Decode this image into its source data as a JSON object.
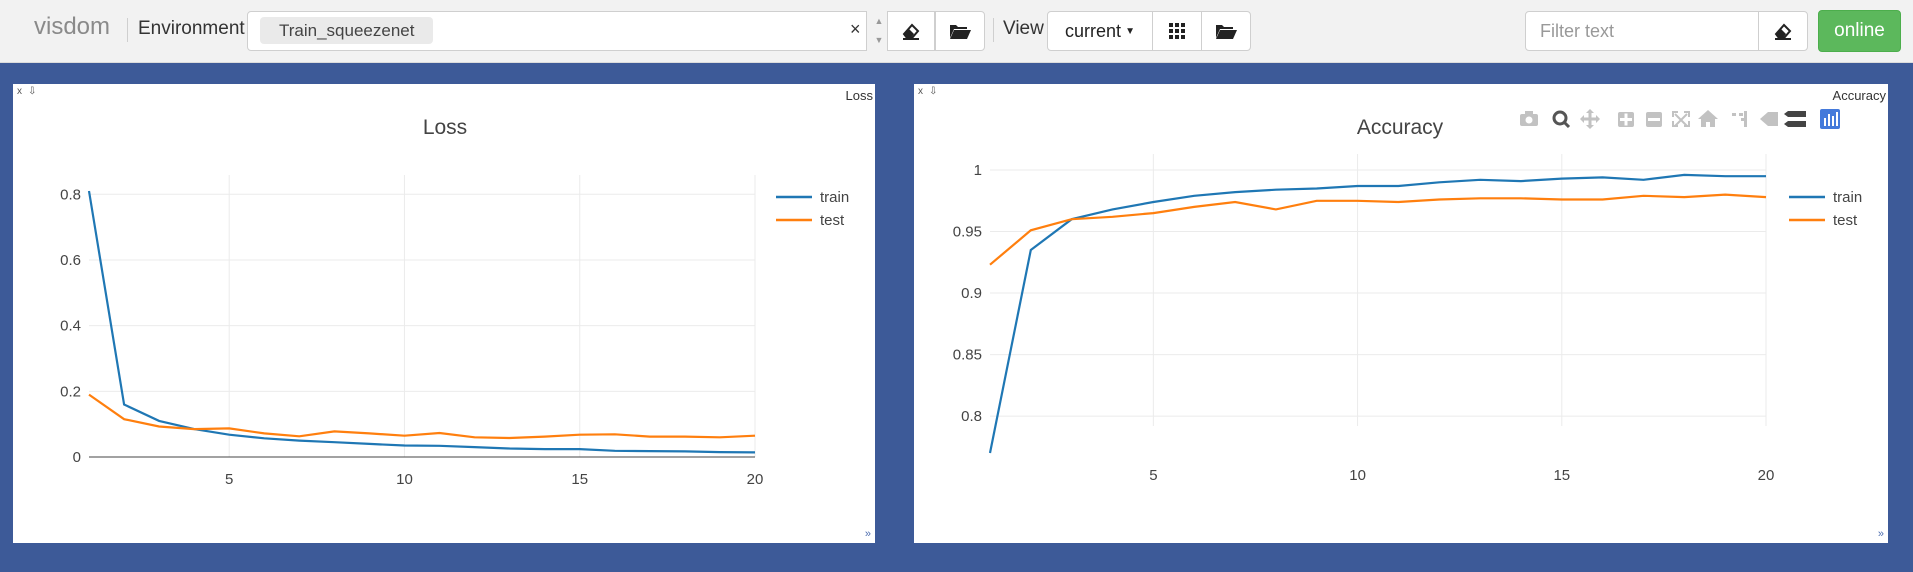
{
  "app": {
    "brand": "visdom"
  },
  "toolbar": {
    "environment_label": "Environment",
    "environment_tag": "Train_squeezenet",
    "clear_symbol": "×",
    "view_label": "View",
    "view_select": "current",
    "filter_placeholder": "Filter text",
    "online_label": "online"
  },
  "colors": {
    "train": "#1f77b4",
    "test": "#ff7f0e",
    "background": "#3d5a98",
    "online": "#5cb85c"
  },
  "icons": [
    "eraser-icon",
    "folder-open-icon",
    "grid-icon",
    "camera-icon",
    "zoom-icon",
    "pan-icon",
    "zoom-in-icon",
    "zoom-out-icon",
    "autoscale-icon",
    "home-icon",
    "spike-lines-icon",
    "hover-closest-icon",
    "hover-compare-icon",
    "plotly-logo-icon"
  ],
  "panes": [
    {
      "name": "Loss",
      "close": "x",
      "download": "⇩"
    },
    {
      "name": "Accuracy",
      "close": "x",
      "download": "⇩"
    }
  ],
  "chart_data": [
    {
      "type": "line",
      "title": "Loss",
      "xlabel": "",
      "ylabel": "",
      "x": [
        1,
        2,
        3,
        4,
        5,
        6,
        7,
        8,
        9,
        10,
        11,
        12,
        13,
        14,
        15,
        16,
        17,
        18,
        19,
        20
      ],
      "xticks": [
        5,
        10,
        15,
        20
      ],
      "yticks": [
        0,
        0.2,
        0.4,
        0.6,
        0.8
      ],
      "xlim": [
        1,
        20
      ],
      "ylim": [
        0,
        0.81
      ],
      "legend_position": "top-right",
      "grid": true,
      "series": [
        {
          "name": "train",
          "values": [
            0.81,
            0.16,
            0.11,
            0.085,
            0.068,
            0.057,
            0.05,
            0.045,
            0.04,
            0.035,
            0.034,
            0.03,
            0.026,
            0.024,
            0.024,
            0.019,
            0.018,
            0.017,
            0.015,
            0.014
          ]
        },
        {
          "name": "test",
          "values": [
            0.19,
            0.115,
            0.093,
            0.085,
            0.087,
            0.072,
            0.063,
            0.078,
            0.072,
            0.065,
            0.073,
            0.06,
            0.058,
            0.062,
            0.068,
            0.069,
            0.062,
            0.062,
            0.06,
            0.065
          ]
        }
      ]
    },
    {
      "type": "line",
      "title": "Accuracy",
      "xlabel": "",
      "ylabel": "",
      "x": [
        1,
        2,
        3,
        4,
        5,
        6,
        7,
        8,
        9,
        10,
        11,
        12,
        13,
        14,
        15,
        16,
        17,
        18,
        19,
        20
      ],
      "xticks": [
        5,
        10,
        15,
        20
      ],
      "yticks": [
        0.8,
        0.85,
        0.9,
        0.95,
        1
      ],
      "ytick_labels": [
        "0.8",
        "0.85",
        "0.9",
        "0.95",
        "1"
      ],
      "xlim": [
        1,
        20
      ],
      "ylim": [
        0.77,
        1.0
      ],
      "legend_position": "top-right",
      "grid": true,
      "series": [
        {
          "name": "train",
          "values": [
            0.77,
            0.935,
            0.96,
            0.968,
            0.974,
            0.979,
            0.982,
            0.984,
            0.985,
            0.987,
            0.987,
            0.99,
            0.992,
            0.991,
            0.993,
            0.994,
            0.992,
            0.996,
            0.995,
            0.995
          ]
        },
        {
          "name": "test",
          "values": [
            0.923,
            0.951,
            0.96,
            0.962,
            0.965,
            0.97,
            0.974,
            0.968,
            0.975,
            0.975,
            0.974,
            0.976,
            0.977,
            0.977,
            0.976,
            0.976,
            0.979,
            0.978,
            0.98,
            0.978
          ]
        }
      ]
    }
  ]
}
